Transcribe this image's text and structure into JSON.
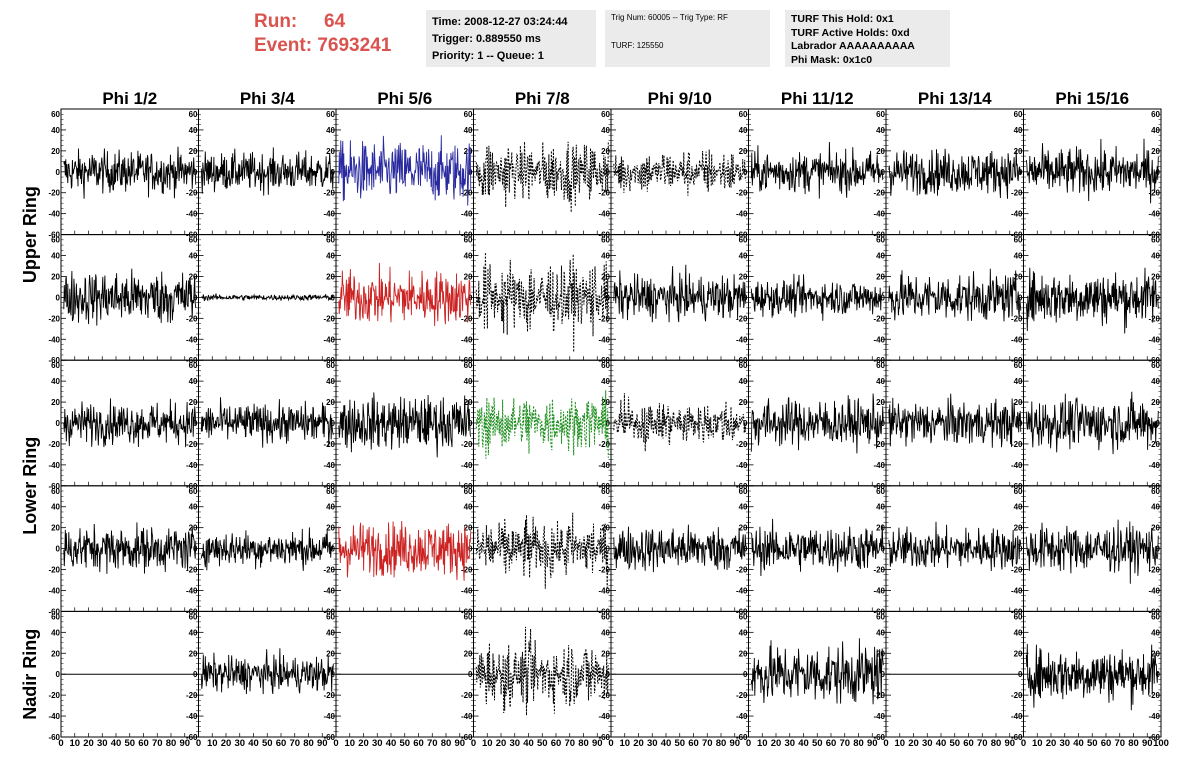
{
  "header": {
    "run_label": "Run:",
    "run_value": "64",
    "event_label": "Event:",
    "event_value": "7693241",
    "time": "Time: 2008-12-27 03:24:44",
    "trigger": "Trigger: 0.889550 ms",
    "priority": "Priority: 1 -- Queue: 1",
    "trig_num": "Trig Num: 60005 -- Trig Type: RF",
    "turf": "TURF: 125550",
    "turf_this_hold": "TURF This Hold: 0x1",
    "turf_active_holds": "TURF Active Holds: 0xd",
    "labrador": "Labrador AAAAAAAAAA",
    "phi_mask": "Phi Mask: 0x1c0"
  },
  "chart_data": {
    "type": "line",
    "columns": [
      "Phi 1/2",
      "Phi 3/4",
      "Phi 5/6",
      "Phi 7/8",
      "Phi 9/10",
      "Phi 11/12",
      "Phi 13/14",
      "Phi 15/16"
    ],
    "rows": [
      "Upper Ring",
      "Upper Ring",
      "Lower Ring",
      "Lower Ring",
      "Nadir Ring"
    ],
    "row_labels": [
      {
        "label": "Upper Ring",
        "rows": [
          0,
          1
        ]
      },
      {
        "label": "Lower Ring",
        "rows": [
          2,
          3
        ]
      },
      {
        "label": "Nadir Ring",
        "rows": [
          4
        ]
      }
    ],
    "xlim": [
      0,
      100
    ],
    "ylim": [
      -60,
      60
    ],
    "y_ticks": [
      -60,
      -40,
      -20,
      0,
      20,
      40,
      60
    ],
    "x_ticks": [
      0,
      10,
      20,
      30,
      40,
      50,
      60,
      70,
      80,
      90,
      100
    ],
    "colors": {
      "default": "#000000",
      "blue": "#2a2aa0",
      "red": "#cc2222",
      "green": "#1f8f1f"
    },
    "panels": [
      [
        {
          "amp": 14,
          "style": "solid",
          "color": "default"
        },
        {
          "amp": 13,
          "style": "solid",
          "color": "default"
        },
        {
          "amp": 20,
          "style": "solid",
          "color": "blue"
        },
        {
          "amp": 17,
          "style": "dashed",
          "color": "default"
        },
        {
          "amp": 12,
          "style": "dashed",
          "color": "default"
        },
        {
          "amp": 14,
          "style": "solid",
          "color": "default"
        },
        {
          "amp": 15,
          "style": "solid",
          "color": "default"
        },
        {
          "amp": 16,
          "style": "solid",
          "color": "default"
        }
      ],
      [
        {
          "amp": 18,
          "style": "solid",
          "color": "default"
        },
        {
          "amp": 2,
          "style": "solid",
          "color": "default"
        },
        {
          "amp": 18,
          "style": "solid",
          "color": "red"
        },
        {
          "amp": 20,
          "style": "dashed",
          "color": "default"
        },
        {
          "amp": 15,
          "style": "solid",
          "color": "default"
        },
        {
          "amp": 12,
          "style": "solid",
          "color": "default"
        },
        {
          "amp": 16,
          "style": "solid",
          "color": "default"
        },
        {
          "amp": 18,
          "style": "solid",
          "color": "default"
        }
      ],
      [
        {
          "amp": 14,
          "style": "solid",
          "color": "default"
        },
        {
          "amp": 13,
          "style": "solid",
          "color": "default"
        },
        {
          "amp": 18,
          "style": "solid",
          "color": "default"
        },
        {
          "amp": 16,
          "style": "dashed",
          "color": "green"
        },
        {
          "amp": 12,
          "style": "dashed",
          "color": "default"
        },
        {
          "amp": 16,
          "style": "solid",
          "color": "default"
        },
        {
          "amp": 15,
          "style": "solid",
          "color": "default"
        },
        {
          "amp": 17,
          "style": "solid",
          "color": "default"
        }
      ],
      [
        {
          "amp": 15,
          "style": "solid",
          "color": "default"
        },
        {
          "amp": 12,
          "style": "solid",
          "color": "default"
        },
        {
          "amp": 18,
          "style": "solid",
          "color": "red"
        },
        {
          "amp": 17,
          "style": "dashed",
          "color": "default"
        },
        {
          "amp": 15,
          "style": "solid",
          "color": "default"
        },
        {
          "amp": 15,
          "style": "solid",
          "color": "default"
        },
        {
          "amp": 14,
          "style": "solid",
          "color": "default"
        },
        {
          "amp": 16,
          "style": "solid",
          "color": "default"
        }
      ],
      [
        {
          "amp": 0,
          "style": "solid",
          "color": "default"
        },
        {
          "amp": 12,
          "style": "solid",
          "color": "default"
        },
        {
          "amp": 0,
          "style": "solid",
          "color": "default"
        },
        {
          "amp": 18,
          "style": "dashed",
          "color": "default"
        },
        {
          "amp": 0,
          "style": "solid",
          "color": "default"
        },
        {
          "amp": 20,
          "style": "solid",
          "color": "default"
        },
        {
          "amp": 0,
          "style": "solid",
          "color": "default"
        },
        {
          "amp": 18,
          "style": "solid",
          "color": "default"
        }
      ]
    ]
  }
}
